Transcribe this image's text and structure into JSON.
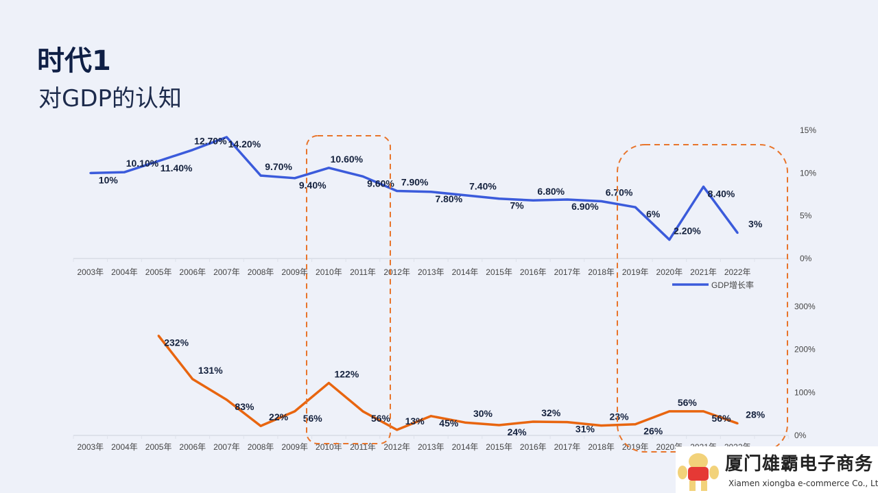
{
  "header": {
    "title": "时代1",
    "subtitle": "对GDP的认知"
  },
  "colors": {
    "gdp_line": "#3b5bdb",
    "second_line": "#e8650f",
    "highlight_box": "#e8742a",
    "label": "#14213d",
    "axis_text": "#444444",
    "background": "#eef1f9"
  },
  "chart_data": [
    {
      "type": "line",
      "categories": [
        "2003年",
        "2004年",
        "2005年",
        "2006年",
        "2007年",
        "2008年",
        "2009年",
        "2010年",
        "2011年",
        "2012年",
        "2013年",
        "2014年",
        "2015年",
        "2016年",
        "2017年",
        "2018年",
        "2019年",
        "2020年",
        "2021年",
        "2022年"
      ],
      "series": [
        {
          "name": "GDP增长率",
          "values": [
            10,
            10.1,
            11.4,
            12.7,
            14.2,
            9.7,
            9.4,
            10.6,
            9.6,
            7.9,
            7.8,
            7.4,
            7,
            6.8,
            6.9,
            6.7,
            6,
            2.2,
            8.4,
            3
          ],
          "labels": [
            "10%",
            "10.10%",
            "11.40%",
            "12.70%",
            "14.20%",
            "9.70%",
            "9.40%",
            "10.60%",
            "9.60%",
            "7.90%",
            "7.80%",
            "7.40%",
            "7%",
            "6.80%",
            "6.90%",
            "6.70%",
            "6%",
            "2.20%",
            "8.40%",
            "3%"
          ]
        }
      ],
      "ylim": [
        0,
        15
      ],
      "yticks": [
        "0%",
        "5%",
        "10%",
        "15%"
      ],
      "y_axis_side": "right",
      "legend": "bottom-right",
      "grid": false
    },
    {
      "type": "line",
      "categories": [
        "2003年",
        "2004年",
        "2005年",
        "2006年",
        "2007年",
        "2008年",
        "2009年",
        "2010年",
        "2011年",
        "2012年",
        "2013年",
        "2014年",
        "2015年",
        "2016年",
        "2017年",
        "2018年",
        "2019年",
        "2020年",
        "2021年",
        "2022年"
      ],
      "series": [
        {
          "values": [
            null,
            null,
            232,
            131,
            83,
            22,
            56,
            122,
            56,
            13,
            45,
            30,
            24,
            32,
            31,
            23,
            26,
            56,
            56,
            28
          ],
          "labels": [
            null,
            null,
            "232%",
            "131%",
            "83%",
            "22%",
            "56%",
            "122%",
            "56%",
            "13%",
            "45%",
            "30%",
            "24%",
            "32%",
            "31%",
            "23%",
            "26%",
            "56%",
            "56%",
            "28%"
          ]
        }
      ],
      "ylim": [
        0,
        300
      ],
      "yticks": [
        "0%",
        "100%",
        "200%",
        "300%"
      ],
      "y_axis_side": "right",
      "grid": false
    }
  ],
  "highlights": [
    {
      "from": "2010年",
      "to": "2011年"
    },
    {
      "from": "2019年",
      "to": "2022年"
    }
  ],
  "logo": {
    "name_cn": "厦门雄霸电子商务",
    "name_en": "Xiamen xiongba e-commerce Co., Ltd",
    "badge": "ymgk"
  }
}
